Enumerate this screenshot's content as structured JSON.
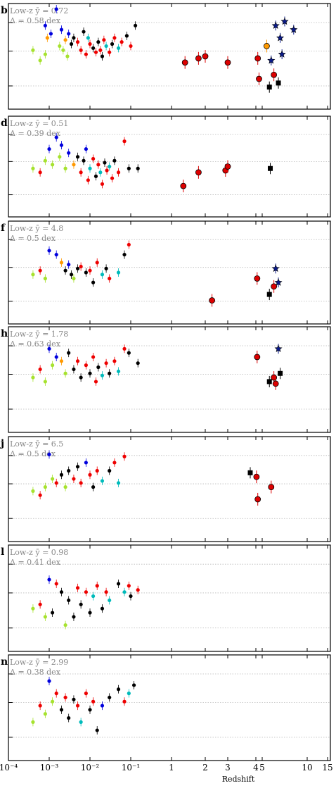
{
  "chart_data": {
    "type": "scatter",
    "x_axis": {
      "label": "Redshift",
      "scale": "log (z < 1), linear (z > 1)",
      "tick_labels": [
        "10⁻⁴",
        "10⁻³",
        "10⁻²",
        "10⁻¹",
        "1",
        "2",
        "3",
        "4",
        "5",
        "10",
        "15"
      ]
    },
    "grid": "horizontal dotted reference lines",
    "panels": [
      {
        "letter": "b",
        "stat_mean": "Low-z ȳ = 0.72",
        "stat_scatter": "Δ = 0.58 dex",
        "points": [
          [
            0.0004,
            0.3,
            "#a6e22e"
          ],
          [
            0.0006,
            0.05,
            "#a6e22e"
          ],
          [
            0.0008,
            0.2,
            "#a6e22e"
          ],
          [
            0.0009,
            0.6,
            "#ff9900"
          ],
          [
            0.0011,
            0.7,
            "#0000dd"
          ],
          [
            0.0008,
            0.9,
            "#0000dd"
          ],
          [
            0.0015,
            1.3,
            "#0000dd"
          ],
          [
            0.002,
            0.8,
            "#0000dd"
          ],
          [
            0.0025,
            0.55,
            "#ff9900"
          ],
          [
            0.003,
            0.7,
            "#0000dd"
          ],
          [
            0.0018,
            0.4,
            "#a6e22e"
          ],
          [
            0.0022,
            0.3,
            "#a6e22e"
          ],
          [
            0.0028,
            0.15,
            "#a6e22e"
          ],
          [
            0.0035,
            0.45,
            "#000000"
          ],
          [
            0.004,
            0.6,
            "#000000"
          ],
          [
            0.005,
            0.5,
            "#ee0000"
          ],
          [
            0.006,
            0.3,
            "#ee0000"
          ],
          [
            0.007,
            0.75,
            "#000000"
          ],
          [
            0.008,
            0.2,
            "#ee0000"
          ],
          [
            0.009,
            0.6,
            "#00bbbb"
          ],
          [
            0.01,
            0.45,
            "#ee0000"
          ],
          [
            0.012,
            0.35,
            "#000000"
          ],
          [
            0.014,
            0.25,
            "#ee0000"
          ],
          [
            0.016,
            0.5,
            "#000000"
          ],
          [
            0.018,
            0.3,
            "#ee0000"
          ],
          [
            0.02,
            0.15,
            "#000000"
          ],
          [
            0.022,
            0.55,
            "#ee0000"
          ],
          [
            0.025,
            0.4,
            "#00bbbb"
          ],
          [
            0.03,
            0.25,
            "#ee0000"
          ],
          [
            0.035,
            0.45,
            "#000000"
          ],
          [
            0.04,
            0.6,
            "#ee0000"
          ],
          [
            0.05,
            0.35,
            "#00bbbb"
          ],
          [
            0.06,
            0.5,
            "#ee0000"
          ],
          [
            0.08,
            0.65,
            "#000000"
          ],
          [
            0.1,
            0.4,
            "#ee0000"
          ],
          [
            0.13,
            0.9,
            "#000000"
          ],
          [
            1.4,
            0.0,
            "#dd0000"
          ],
          [
            1.8,
            0.1,
            "#dd0000"
          ],
          [
            2.0,
            0.15,
            "#dd0000"
          ],
          [
            3.0,
            0.0,
            "#dd0000"
          ],
          [
            4.3,
            0.1,
            "#dd0000"
          ],
          [
            4.5,
            -0.4,
            "#dd0000"
          ],
          [
            5.8,
            -0.6,
            "#000000"
          ],
          [
            6.0,
            0.05,
            "#0a1a8a"
          ],
          [
            6.3,
            -0.3,
            "#dd0000"
          ],
          [
            6.5,
            0.9,
            "#0a1a8a"
          ],
          [
            7.0,
            0.6,
            "#0a1a8a"
          ],
          [
            7.2,
            0.2,
            "#0a1a8a"
          ],
          [
            7.5,
            1.0,
            "#0a1a8a"
          ],
          [
            8.5,
            0.8,
            "#0a1a8a"
          ],
          [
            6.8,
            -0.5,
            "#000000"
          ],
          [
            5.5,
            0.4,
            "#ff9900"
          ]
        ]
      },
      {
        "letter": "d",
        "stat_mean": "Low-z ȳ = 0.51",
        "stat_scatter": "Δ = 0.39 dex",
        "points": [
          [
            0.0004,
            0.1,
            "#a6e22e"
          ],
          [
            0.0006,
            0.0,
            "#ee0000"
          ],
          [
            0.0008,
            0.3,
            "#a6e22e"
          ],
          [
            0.001,
            0.6,
            "#0000dd"
          ],
          [
            0.0015,
            0.9,
            "#0000dd"
          ],
          [
            0.002,
            0.7,
            "#0000dd"
          ],
          [
            0.0012,
            0.2,
            "#a6e22e"
          ],
          [
            0.0018,
            0.4,
            "#a6e22e"
          ],
          [
            0.0025,
            0.1,
            "#a6e22e"
          ],
          [
            0.003,
            0.5,
            "#0000dd"
          ],
          [
            0.004,
            0.2,
            "#ff9900"
          ],
          [
            0.005,
            0.4,
            "#000000"
          ],
          [
            0.006,
            0.0,
            "#ee0000"
          ],
          [
            0.007,
            0.3,
            "#000000"
          ],
          [
            0.008,
            0.6,
            "#0000dd"
          ],
          [
            0.009,
            -0.2,
            "#ee0000"
          ],
          [
            0.01,
            0.1,
            "#00bbbb"
          ],
          [
            0.012,
            0.35,
            "#ee0000"
          ],
          [
            0.014,
            -0.1,
            "#000000"
          ],
          [
            0.016,
            0.2,
            "#ee0000"
          ],
          [
            0.018,
            0.0,
            "#00bbbb"
          ],
          [
            0.02,
            -0.3,
            "#ee0000"
          ],
          [
            0.023,
            0.25,
            "#000000"
          ],
          [
            0.026,
            0.05,
            "#ee0000"
          ],
          [
            0.03,
            0.15,
            "#00bbbb"
          ],
          [
            0.035,
            -0.15,
            "#ee0000"
          ],
          [
            0.04,
            0.3,
            "#000000"
          ],
          [
            0.05,
            0.0,
            "#ee0000"
          ],
          [
            0.07,
            0.8,
            "#ee0000"
          ],
          [
            0.09,
            0.1,
            "#000000"
          ],
          [
            0.15,
            0.1,
            "#000000"
          ],
          [
            1.35,
            -0.35,
            "#dd0000"
          ],
          [
            1.8,
            0.0,
            "#dd0000"
          ],
          [
            2.9,
            0.05,
            "#dd0000"
          ],
          [
            3.0,
            0.15,
            "#dd0000"
          ],
          [
            5.9,
            0.1,
            "#000000"
          ]
        ]
      },
      {
        "letter": "f",
        "stat_mean": "Low-z ȳ = 4.8",
        "stat_scatter": "Δ = 0.5 dex",
        "points": [
          [
            0.0004,
            0.1,
            "#a6e22e"
          ],
          [
            0.0006,
            0.2,
            "#ee0000"
          ],
          [
            0.0008,
            0.0,
            "#a6e22e"
          ],
          [
            0.001,
            0.7,
            "#0000dd"
          ],
          [
            0.0015,
            0.6,
            "#0000dd"
          ],
          [
            0.002,
            0.4,
            "#ff9900"
          ],
          [
            0.0025,
            0.2,
            "#000000"
          ],
          [
            0.003,
            0.35,
            "#0000dd"
          ],
          [
            0.0035,
            0.1,
            "#000000"
          ],
          [
            0.004,
            0.0,
            "#a6e22e"
          ],
          [
            0.005,
            0.25,
            "#000000"
          ],
          [
            0.006,
            0.3,
            "#ee0000"
          ],
          [
            0.008,
            0.15,
            "#000000"
          ],
          [
            0.01,
            0.2,
            "#ee0000"
          ],
          [
            0.012,
            -0.1,
            "#000000"
          ],
          [
            0.015,
            0.4,
            "#ee0000"
          ],
          [
            0.02,
            0.1,
            "#00bbbb"
          ],
          [
            0.025,
            0.25,
            "#000000"
          ],
          [
            0.03,
            0.0,
            "#ee0000"
          ],
          [
            0.05,
            0.15,
            "#00bbbb"
          ],
          [
            0.07,
            0.6,
            "#000000"
          ],
          [
            0.09,
            0.85,
            "#ee0000"
          ],
          [
            2.3,
            -0.55,
            "#dd0000"
          ],
          [
            4.2,
            0.0,
            "#dd0000"
          ],
          [
            5.8,
            -0.4,
            "#000000"
          ],
          [
            6.5,
            0.25,
            "#0a1a8a"
          ],
          [
            6.8,
            -0.1,
            "#0a1a8a"
          ],
          [
            6.3,
            -0.2,
            "#dd0000"
          ]
        ]
      },
      {
        "letter": "h",
        "stat_mean": "Low-z ȳ = 1.78",
        "stat_scatter": "Δ = 0.63 dex",
        "points": [
          [
            0.0004,
            0.2,
            "#a6e22e"
          ],
          [
            0.0006,
            0.4,
            "#ee0000"
          ],
          [
            0.0008,
            0.1,
            "#a6e22e"
          ],
          [
            0.001,
            0.9,
            "#0000dd"
          ],
          [
            0.0012,
            0.5,
            "#a6e22e"
          ],
          [
            0.0015,
            0.7,
            "#0000dd"
          ],
          [
            0.002,
            0.6,
            "#ff9900"
          ],
          [
            0.0025,
            0.3,
            "#a6e22e"
          ],
          [
            0.003,
            0.8,
            "#000000"
          ],
          [
            0.004,
            0.4,
            "#000000"
          ],
          [
            0.005,
            0.6,
            "#ee0000"
          ],
          [
            0.006,
            0.2,
            "#000000"
          ],
          [
            0.008,
            0.5,
            "#ee0000"
          ],
          [
            0.01,
            0.3,
            "#000000"
          ],
          [
            0.012,
            0.7,
            "#ee0000"
          ],
          [
            0.014,
            0.1,
            "#ee0000"
          ],
          [
            0.016,
            0.45,
            "#000000"
          ],
          [
            0.02,
            0.25,
            "#00bbbb"
          ],
          [
            0.025,
            0.55,
            "#ee0000"
          ],
          [
            0.03,
            0.3,
            "#000000"
          ],
          [
            0.04,
            0.6,
            "#ee0000"
          ],
          [
            0.05,
            0.35,
            "#00bbbb"
          ],
          [
            0.07,
            0.9,
            "#ee0000"
          ],
          [
            0.09,
            0.8,
            "#000000"
          ],
          [
            0.15,
            0.55,
            "#000000"
          ],
          [
            4.2,
            0.7,
            "#dd0000"
          ],
          [
            5.8,
            0.1,
            "#000000"
          ],
          [
            6.3,
            0.2,
            "#dd0000"
          ],
          [
            6.5,
            0.05,
            "#dd0000"
          ],
          [
            7.0,
            0.3,
            "#000000"
          ],
          [
            6.8,
            0.9,
            "#0a1a8a"
          ]
        ]
      },
      {
        "letter": "j",
        "stat_mean": "Low-z ȳ = 6.5",
        "stat_scatter": "Δ = 0.5 dex",
        "points": [
          [
            0.0004,
            0.1,
            "#a6e22e"
          ],
          [
            0.0006,
            0.0,
            "#ee0000"
          ],
          [
            0.0008,
            0.2,
            "#a6e22e"
          ],
          [
            0.001,
            1.0,
            "#0000dd"
          ],
          [
            0.0012,
            0.4,
            "#a6e22e"
          ],
          [
            0.0015,
            0.3,
            "#ee0000"
          ],
          [
            0.002,
            0.5,
            "#000000"
          ],
          [
            0.0025,
            0.2,
            "#a6e22e"
          ],
          [
            0.003,
            0.6,
            "#000000"
          ],
          [
            0.004,
            0.4,
            "#ee0000"
          ],
          [
            0.005,
            0.7,
            "#000000"
          ],
          [
            0.006,
            0.3,
            "#ee0000"
          ],
          [
            0.008,
            0.8,
            "#0000dd"
          ],
          [
            0.01,
            0.5,
            "#ee0000"
          ],
          [
            0.012,
            0.2,
            "#000000"
          ],
          [
            0.015,
            0.6,
            "#ee0000"
          ],
          [
            0.02,
            0.35,
            "#00bbbb"
          ],
          [
            0.03,
            0.6,
            "#000000"
          ],
          [
            0.04,
            0.8,
            "#ee0000"
          ],
          [
            0.05,
            0.3,
            "#00bbbb"
          ],
          [
            0.07,
            0.95,
            "#ee0000"
          ],
          [
            3.8,
            0.55,
            "#000000"
          ],
          [
            4.1,
            0.45,
            "#dd0000"
          ],
          [
            4.3,
            -0.1,
            "#dd0000"
          ],
          [
            6.0,
            0.2,
            "#dd0000"
          ]
        ]
      },
      {
        "letter": "l",
        "stat_mean": "Low-z ȳ = 0.98",
        "stat_scatter": "Δ = 0.41 dex",
        "points": [
          [
            0.0004,
            -0.1,
            "#a6e22e"
          ],
          [
            0.0006,
            0.0,
            "#ee0000"
          ],
          [
            0.0008,
            -0.3,
            "#a6e22e"
          ],
          [
            0.001,
            0.6,
            "#0000dd"
          ],
          [
            0.0012,
            -0.2,
            "#000000"
          ],
          [
            0.0015,
            0.5,
            "#ee0000"
          ],
          [
            0.002,
            0.3,
            "#000000"
          ],
          [
            0.0025,
            -0.5,
            "#a6e22e"
          ],
          [
            0.003,
            0.1,
            "#000000"
          ],
          [
            0.004,
            -0.3,
            "#000000"
          ],
          [
            0.005,
            0.4,
            "#ee0000"
          ],
          [
            0.006,
            0.0,
            "#000000"
          ],
          [
            0.008,
            0.3,
            "#ee0000"
          ],
          [
            0.01,
            -0.2,
            "#000000"
          ],
          [
            0.012,
            0.2,
            "#00bbbb"
          ],
          [
            0.015,
            0.45,
            "#ee0000"
          ],
          [
            0.02,
            -0.1,
            "#000000"
          ],
          [
            0.025,
            0.3,
            "#ee0000"
          ],
          [
            0.03,
            0.1,
            "#00bbbb"
          ],
          [
            0.05,
            0.5,
            "#000000"
          ],
          [
            0.07,
            0.3,
            "#00bbbb"
          ],
          [
            0.09,
            0.45,
            "#ee0000"
          ],
          [
            0.1,
            0.2,
            "#000000"
          ],
          [
            0.15,
            0.35,
            "#ee0000"
          ]
        ]
      },
      {
        "letter": "n",
        "stat_mean": "Low-z ȳ = 2.99",
        "stat_scatter": "Δ = 0.38 dex",
        "points": [
          [
            0.0004,
            -0.2,
            "#a6e22e"
          ],
          [
            0.0006,
            0.2,
            "#ee0000"
          ],
          [
            0.0008,
            0.0,
            "#a6e22e"
          ],
          [
            0.001,
            0.8,
            "#0000dd"
          ],
          [
            0.0012,
            0.3,
            "#a6e22e"
          ],
          [
            0.0015,
            0.5,
            "#ee0000"
          ],
          [
            0.002,
            0.1,
            "#000000"
          ],
          [
            0.0025,
            0.4,
            "#ee0000"
          ],
          [
            0.003,
            -0.1,
            "#000000"
          ],
          [
            0.004,
            0.35,
            "#000000"
          ],
          [
            0.005,
            0.2,
            "#ee0000"
          ],
          [
            0.006,
            -0.2,
            "#00bbbb"
          ],
          [
            0.008,
            0.5,
            "#ee0000"
          ],
          [
            0.01,
            0.1,
            "#000000"
          ],
          [
            0.012,
            0.3,
            "#ee0000"
          ],
          [
            0.015,
            -0.4,
            "#000000"
          ],
          [
            0.02,
            0.2,
            "#0000dd"
          ],
          [
            0.03,
            0.4,
            "#000000"
          ],
          [
            0.05,
            0.6,
            "#000000"
          ],
          [
            0.07,
            0.3,
            "#ee0000"
          ],
          [
            0.09,
            0.5,
            "#00bbbb"
          ],
          [
            0.12,
            0.7,
            "#000000"
          ]
        ]
      }
    ]
  }
}
